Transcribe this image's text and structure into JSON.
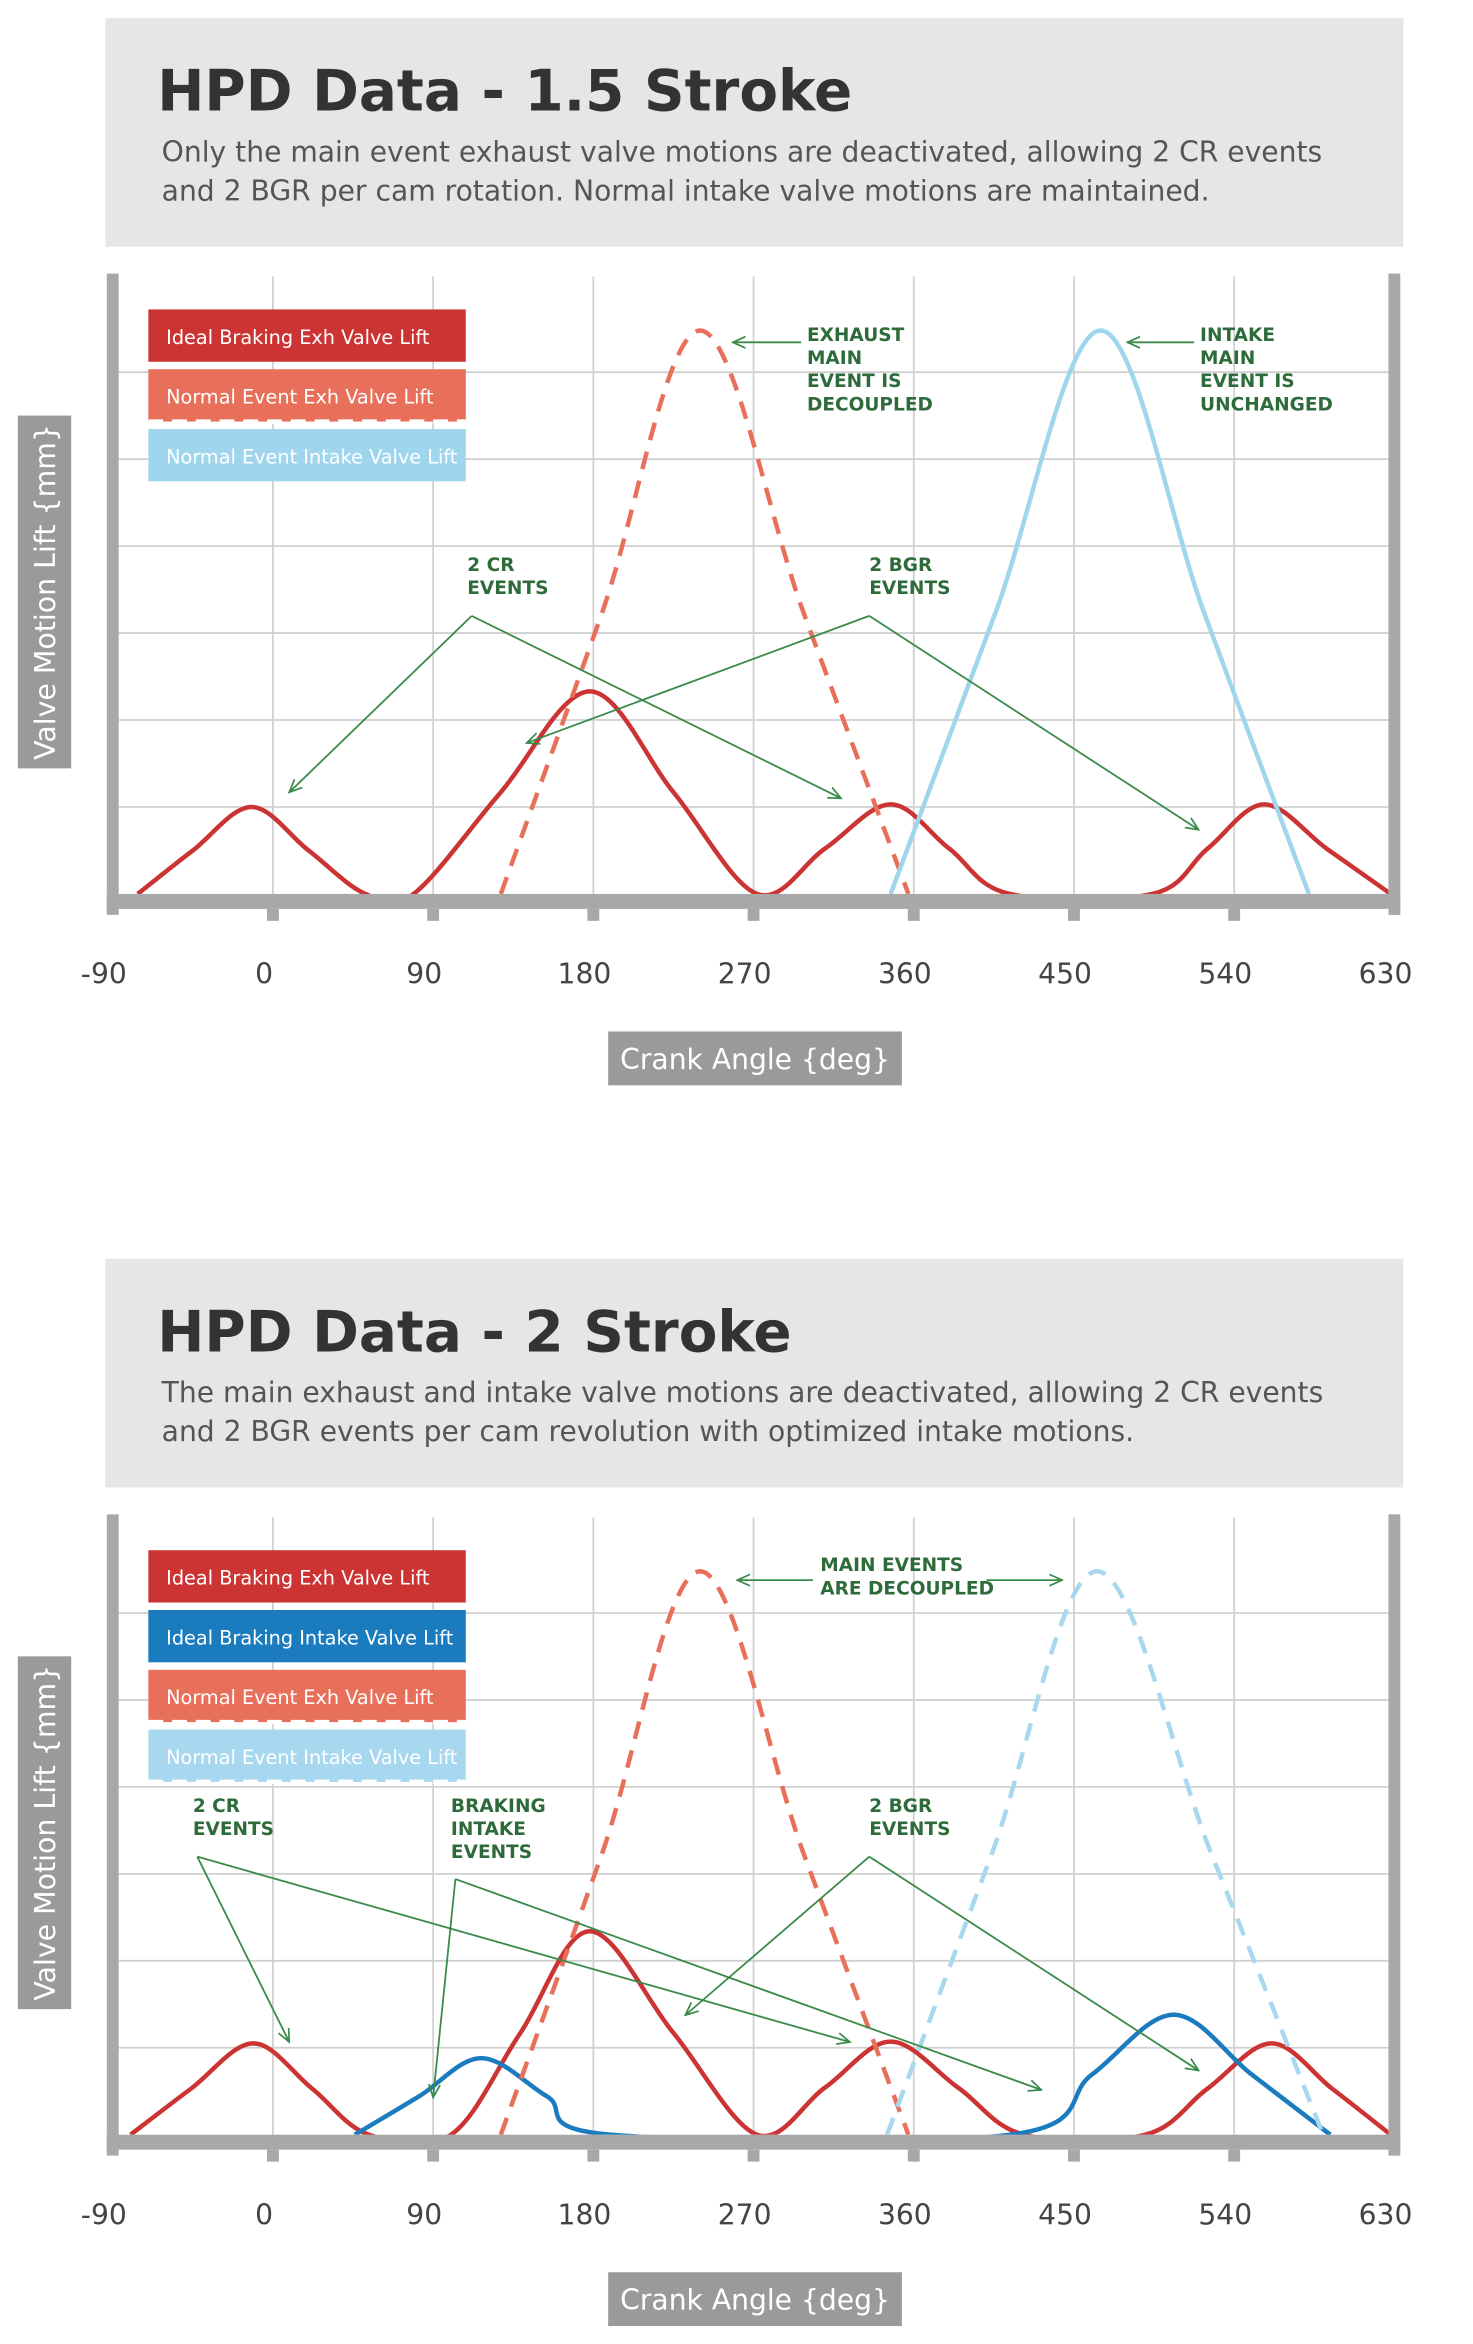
{
  "chart_data": [
    {
      "type": "line",
      "title": "HPD Data - 1.5 Stroke",
      "subtitle": [
        "Only the main event exhaust valve motions are deactivated, allowing 2 CR events",
        "and 2 BGR per cam rotation. Normal intake valve motions are maintained."
      ],
      "x_label": "Crank Angle {deg}",
      "y_label": "Valve Motion Lift {mm}",
      "xlim": [
        -90,
        630
      ],
      "xticks": [
        -90,
        0,
        90,
        180,
        270,
        360,
        450,
        540,
        630
      ],
      "ylim": [
        0,
        7.1
      ],
      "yticks": [
        1,
        2,
        3,
        4,
        5,
        6
      ],
      "grid": true,
      "legend": "top-left",
      "series": [
        {
          "name": "Ideal Braking Exh Valve Lift",
          "color": "#cc3333",
          "dashed": false,
          "x": [
            -76,
            -45,
            -12,
            20,
            52,
            79,
            128,
            178,
            225,
            272,
            310,
            347,
            380,
            414,
            494,
            525,
            557,
            592,
            628
          ],
          "values": [
            0,
            0.5,
            1.0,
            0.5,
            0,
            0,
            1.17,
            2.33,
            1.17,
            0,
            0.52,
            1.03,
            0.52,
            0,
            0,
            0.52,
            1.03,
            0.52,
            0
          ]
        },
        {
          "name": "Normal Event Exh Valve Lift",
          "color": "#e8705a",
          "dashed": true,
          "x": [
            128,
            185,
            240,
            298,
            357
          ],
          "values": [
            0,
            3.24,
            6.48,
            3.24,
            0
          ]
        },
        {
          "name": "Normal Event Intake Valve Lift",
          "color": "#9fd6ee",
          "dashed": false,
          "x": [
            347,
            406,
            465,
            523,
            582
          ],
          "values": [
            0,
            3.24,
            6.48,
            3.24,
            0
          ]
        }
      ],
      "annotations": [
        {
          "text": [
            "2 CR",
            "EVENTS"
          ]
        },
        {
          "text": [
            "2 BGR",
            "EVENTS"
          ]
        },
        {
          "text": [
            "EXHAUST",
            "MAIN",
            "EVENT IS",
            "DECOUPLED"
          ]
        },
        {
          "text": [
            "INTAKE",
            "MAIN",
            "EVENT IS",
            "UNCHANGED"
          ]
        }
      ]
    },
    {
      "type": "line",
      "title": "HPD Data - 2 Stroke",
      "subtitle": [
        "The main exhaust and intake valve motions are deactivated, allowing 2 CR events",
        "and 2 BGR events per cam revolution with optimized intake motions."
      ],
      "x_label": "Crank Angle {deg}",
      "y_label": "Valve Motion Lift {mm}",
      "xlim": [
        -90,
        630
      ],
      "xticks": [
        -90,
        0,
        90,
        180,
        270,
        360,
        450,
        540,
        630
      ],
      "ylim": [
        0,
        7.1
      ],
      "yticks": [
        1,
        2,
        3,
        4,
        5,
        6
      ],
      "grid": true,
      "legend": "top-left",
      "series": [
        {
          "name": "Ideal Braking Exh Valve Lift",
          "color": "#cc3333",
          "dashed": false,
          "x": [
            -80,
            -46,
            -11,
            22,
            54,
            100,
            139,
            178,
            225,
            272,
            310,
            347,
            385,
            422,
            490,
            525,
            561,
            595,
            628
          ],
          "values": [
            0,
            0.53,
            1.05,
            0.53,
            0,
            0,
            1.17,
            2.34,
            1.17,
            0,
            0.54,
            1.07,
            0.54,
            0,
            0,
            0.53,
            1.05,
            0.53,
            0
          ]
        },
        {
          "name": "Ideal Braking Intake Valve Lift",
          "color": "#1a7bbf",
          "dashed": false,
          "x": [
            46,
            82,
            117,
            154,
            190,
            414,
            460,
            506,
            550,
            594
          ],
          "values": [
            0,
            0.44,
            0.88,
            0.44,
            0,
            0,
            0.69,
            1.38,
            0.69,
            0
          ]
        },
        {
          "name": "Normal Event Exh Valve Lift",
          "color": "#e8705a",
          "dashed": true,
          "x": [
            128,
            185,
            240,
            298,
            357
          ],
          "values": [
            0,
            3.24,
            6.48,
            3.24,
            0
          ]
        },
        {
          "name": "Normal Event Intake Valve Lift",
          "color": "#a8d8f0",
          "dashed": true,
          "x": [
            345,
            404,
            463,
            527,
            590
          ],
          "values": [
            0,
            3.24,
            6.48,
            3.24,
            0
          ]
        }
      ],
      "annotations": [
        {
          "text": [
            "2 CR",
            "EVENTS"
          ]
        },
        {
          "text": [
            "BRAKING",
            "INTAKE",
            "EVENTS"
          ]
        },
        {
          "text": [
            "2 BGR",
            "EVENTS"
          ]
        },
        {
          "text": [
            "MAIN EVENTS",
            "ARE DECOUPLED"
          ]
        }
      ]
    }
  ]
}
